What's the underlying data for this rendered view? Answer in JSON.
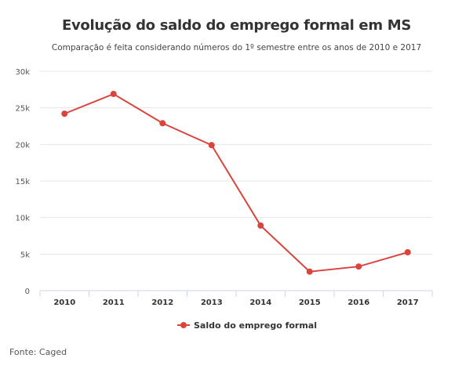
{
  "chart_data": {
    "type": "line",
    "title": "Evolução do saldo do emprego formal em MS",
    "subtitle": "Comparação é feita considerando números do 1º semestre entre os anos de 2010 e 2017",
    "categories": [
      "2010",
      "2011",
      "2012",
      "2013",
      "2014",
      "2015",
      "2016",
      "2017"
    ],
    "series": [
      {
        "name": "Saldo do emprego formal",
        "color": "#d9453d",
        "values": [
          24200,
          26900,
          22900,
          19900,
          8900,
          2600,
          3300,
          5250
        ]
      }
    ],
    "ylim": [
      0,
      30000
    ],
    "yticks": [
      0,
      5000,
      10000,
      15000,
      20000,
      25000,
      30000
    ],
    "ytick_labels": [
      "0",
      "5k",
      "10k",
      "15k",
      "20k",
      "25k",
      "30k"
    ],
    "xlabel": "",
    "ylabel": "",
    "grid": true,
    "legend": "bottom-center",
    "source": "Fonte: Caged"
  }
}
